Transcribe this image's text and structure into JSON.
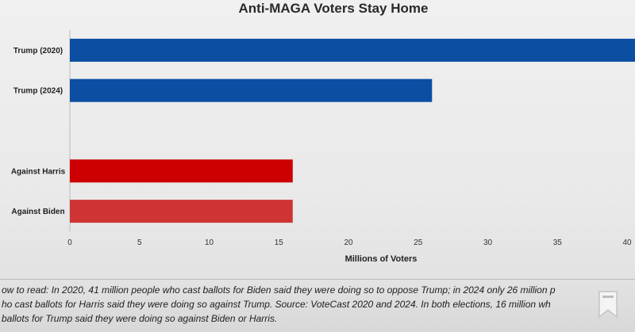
{
  "chart_data": {
    "type": "bar",
    "orientation": "horizontal",
    "title": "Anti-MAGA Voters Stay Home",
    "xlabel": "Millions of Voters",
    "ylabel": "",
    "xlim": [
      0,
      40
    ],
    "xticks": [
      0,
      5,
      10,
      15,
      20,
      25,
      30,
      35,
      40
    ],
    "grid": false,
    "legend": "none",
    "categories": [
      "Trump (2020)",
      "Trump (2024)",
      "",
      "Against Harris",
      "Against Biden"
    ],
    "values": [
      41,
      26,
      null,
      16,
      16
    ],
    "colors": [
      "#0b4ea2",
      "#0b4ea2",
      null,
      "#cc0000",
      "#cf3434"
    ]
  },
  "caption": {
    "text": "ow to read: In 2020, 41 million people who cast ballots for Biden said they were doing so to oppose Trump; in 2024 only 26 million p\nho cast ballots for Harris said they were doing so against Trump. Source: VoteCast 2020 and 2024.  In both elections, 16 million wh\nballots for Trump said they were doing so against Biden or Harris."
  },
  "overlay": {
    "icon": "bookmark-icon"
  }
}
